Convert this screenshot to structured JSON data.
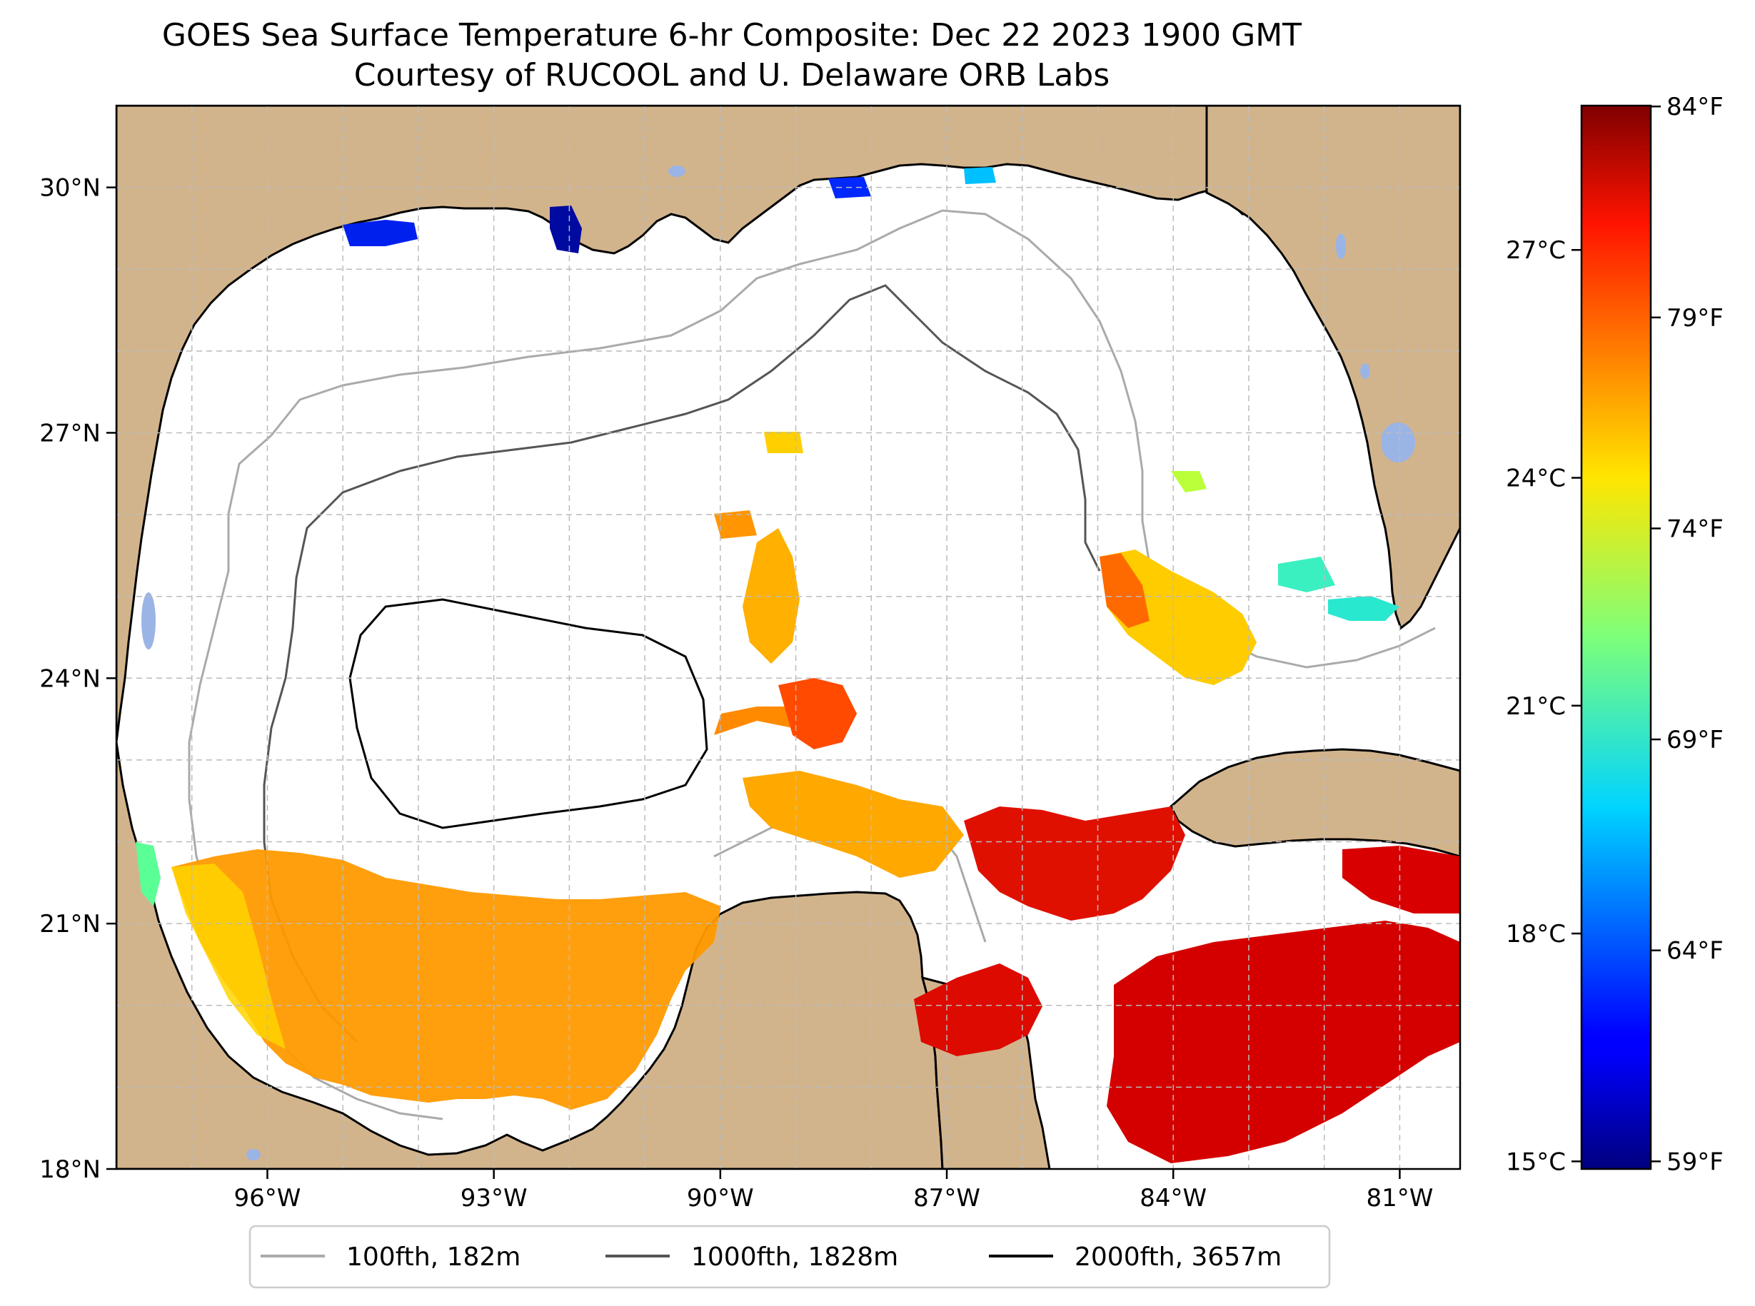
{
  "title": {
    "line1": "GOES Sea Surface Temperature 6-hr Composite: Dec 22 2023 1900 GMT",
    "line2": "Courtesy of RUCOOL and U. Delaware ORB Labs"
  },
  "map": {
    "extent": {
      "lon_min": -98,
      "lon_max": -80.2,
      "lat_min": 18,
      "lat_max": 31
    },
    "lon_ticks": [
      {
        "value": -96,
        "label": "96°W"
      },
      {
        "value": -93,
        "label": "93°W"
      },
      {
        "value": -90,
        "label": "90°W"
      },
      {
        "value": -87,
        "label": "87°W"
      },
      {
        "value": -84,
        "label": "84°W"
      },
      {
        "value": -81,
        "label": "81°W"
      }
    ],
    "lat_ticks": [
      {
        "value": 18,
        "label": "18°N"
      },
      {
        "value": 21,
        "label": "21°N"
      },
      {
        "value": 24,
        "label": "24°N"
      },
      {
        "value": 27,
        "label": "27°N"
      },
      {
        "value": 30,
        "label": "30°N"
      }
    ],
    "colors": {
      "land": "#d2b48c",
      "water": "#ffffff",
      "lakes": "#9ab4e6",
      "grid": "#bbbbbb"
    }
  },
  "legend": {
    "items": [
      {
        "label": "100fth, 182m",
        "color": "#aaaaaa"
      },
      {
        "label": "1000fth, 1828m",
        "color": "#555555"
      },
      {
        "label": "2000fth, 3657m",
        "color": "#000000"
      }
    ]
  },
  "colorbar": {
    "colormap": "jet",
    "celsius_range": [
      14.9,
      28.9
    ],
    "celsius_ticks": [
      {
        "value": 15,
        "label": "15°C"
      },
      {
        "value": 18,
        "label": "18°C"
      },
      {
        "value": 21,
        "label": "21°C"
      },
      {
        "value": 24,
        "label": "24°C"
      },
      {
        "value": 27,
        "label": "27°C"
      }
    ],
    "fahrenheit_ticks": [
      {
        "value": 59,
        "label": "59°F"
      },
      {
        "value": 64,
        "label": "64°F"
      },
      {
        "value": 69,
        "label": "69°F"
      },
      {
        "value": 74,
        "label": "74°F"
      },
      {
        "value": 79,
        "label": "79°F"
      },
      {
        "value": 84,
        "label": "84°F"
      }
    ]
  }
}
